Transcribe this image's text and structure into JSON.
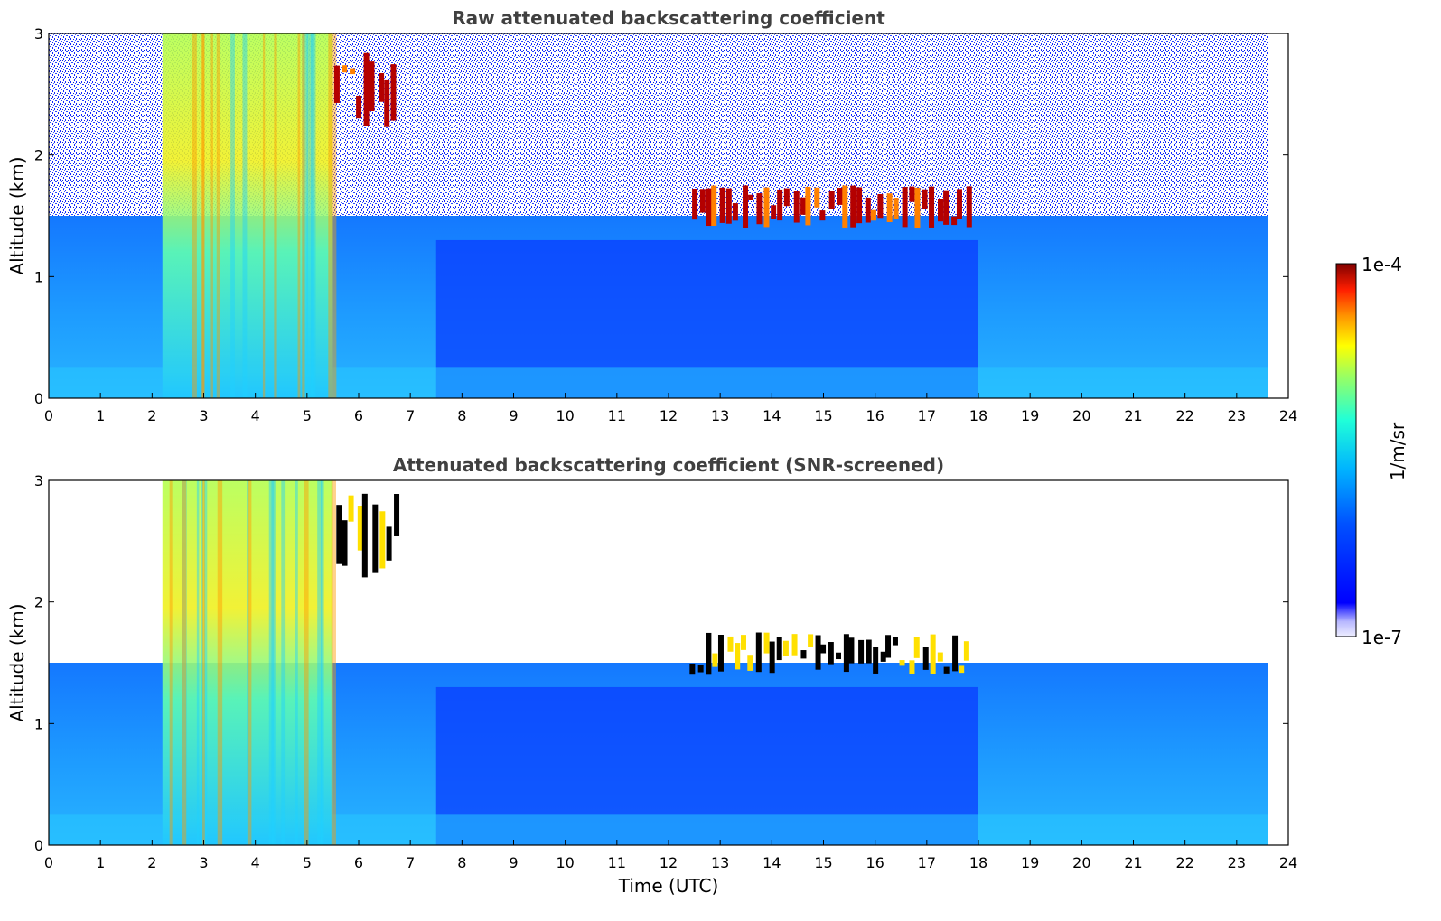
{
  "chart_data": [
    {
      "type": "heatmap",
      "title": "Raw attenuated backscattering coefficient",
      "xlabel": "",
      "ylabel": "Altitude (km)",
      "xlim": [
        0,
        24
      ],
      "ylim": [
        0,
        3
      ],
      "x_ticks": [
        0,
        1,
        2,
        3,
        4,
        5,
        6,
        7,
        8,
        9,
        10,
        11,
        12,
        13,
        14,
        15,
        16,
        17,
        18,
        19,
        20,
        21,
        22,
        23,
        24
      ],
      "y_ticks": [
        0,
        1,
        2,
        3
      ],
      "data_end_time": 23.6,
      "screened": false,
      "features": [
        {
          "kind": "boundary_layer",
          "time_range": [
            0,
            23.6
          ],
          "altitude_range": [
            0,
            1.5
          ]
        },
        {
          "kind": "rain_fall_streaks",
          "time_range": [
            2.2,
            5.5
          ],
          "altitude_range": [
            0,
            3
          ]
        },
        {
          "kind": "cloud_layer",
          "time_range": [
            5.5,
            6.8
          ],
          "altitude_range": [
            2.2,
            2.9
          ]
        },
        {
          "kind": "cloud_layer",
          "time_range": [
            12.4,
            17.9
          ],
          "altitude_range": [
            1.4,
            1.75
          ]
        },
        {
          "kind": "noise_region",
          "time_range": [
            0,
            23.6
          ],
          "altitude_range": [
            1.5,
            3
          ]
        }
      ]
    },
    {
      "type": "heatmap",
      "title": "Attenuated backscattering coefficient (SNR-screened)",
      "xlabel": "Time (UTC)",
      "ylabel": "Altitude (km)",
      "xlim": [
        0,
        24
      ],
      "ylim": [
        0,
        3
      ],
      "x_ticks": [
        0,
        1,
        2,
        3,
        4,
        5,
        6,
        7,
        8,
        9,
        10,
        11,
        12,
        13,
        14,
        15,
        16,
        17,
        18,
        19,
        20,
        21,
        22,
        23,
        24
      ],
      "y_ticks": [
        0,
        1,
        2,
        3
      ],
      "data_end_time": 23.6,
      "screened": true,
      "features": [
        {
          "kind": "boundary_layer",
          "time_range": [
            0,
            23.6
          ],
          "altitude_range": [
            0,
            1.5
          ]
        },
        {
          "kind": "rain_fall_streaks",
          "time_range": [
            2.2,
            5.5
          ],
          "altitude_range": [
            0,
            3
          ]
        },
        {
          "kind": "cloud_layer",
          "time_range": [
            5.5,
            6.8
          ],
          "altitude_range": [
            2.2,
            2.9
          ]
        },
        {
          "kind": "cloud_layer",
          "time_range": [
            12.4,
            17.9
          ],
          "altitude_range": [
            1.4,
            1.75
          ]
        }
      ]
    }
  ],
  "colorbar": {
    "label": "1/m/sr",
    "max_label": "1e-4",
    "min_label": "1e-7",
    "scale": "log",
    "range": [
      1e-07,
      0.0001
    ],
    "colormap": "jet"
  }
}
